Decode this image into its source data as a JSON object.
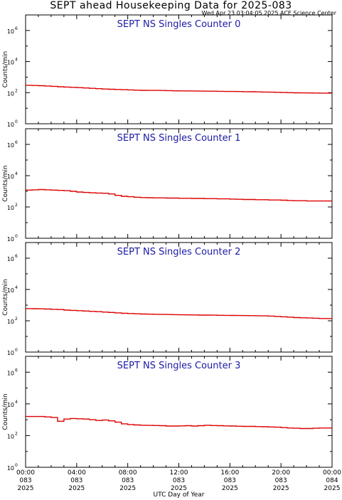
{
  "header": {
    "title": "SEPT ahead Housekeeping Data for 2025-083",
    "timestamp": "Wed Apr 23 03:04:05 2025 ACE Science Center"
  },
  "x_axis": {
    "label": "UTC Day of Year",
    "ticks": [
      {
        "time": "00:00",
        "day": "083",
        "year": "2025"
      },
      {
        "time": "04:00",
        "day": "083",
        "year": "2025"
      },
      {
        "time": "08:00",
        "day": "083",
        "year": "2025"
      },
      {
        "time": "12:00",
        "day": "083",
        "year": "2025"
      },
      {
        "time": "16:00",
        "day": "083",
        "year": "2025"
      },
      {
        "time": "20:00",
        "day": "083",
        "year": "2025"
      },
      {
        "time": "00:00",
        "day": "084",
        "year": "2025"
      }
    ]
  },
  "y_axis": {
    "label": "Counts/min",
    "tick_base": "10",
    "tick_exponents": [
      "0",
      "2",
      "4",
      "6"
    ]
  },
  "colors": {
    "series": "#dd0000",
    "panel_title": "#1a1aa6",
    "axes": "#000000"
  },
  "chart_data": [
    {
      "type": "line",
      "title": "SEPT NS Singles Counter 0",
      "xlabel": "UTC Day of Year",
      "ylabel": "Counts/min",
      "xlim": [
        0,
        24
      ],
      "ylim": [
        1,
        10000000
      ],
      "yscale": "log",
      "x": [
        0,
        0.5,
        1,
        1.5,
        2,
        2.5,
        3,
        3.5,
        4,
        4.5,
        5,
        5.5,
        6,
        6.5,
        7,
        7.5,
        8,
        8.5,
        9,
        9.5,
        10,
        10.5,
        11,
        11.5,
        12,
        12.5,
        13,
        13.5,
        14,
        14.5,
        15,
        15.5,
        16,
        16.5,
        17,
        17.5,
        18,
        18.5,
        19,
        19.5,
        20,
        20.5,
        21,
        21.5,
        22,
        22.5,
        23,
        23.5
      ],
      "values": [
        300,
        290,
        280,
        270,
        255,
        240,
        230,
        220,
        210,
        200,
        190,
        180,
        170,
        165,
        160,
        155,
        150,
        145,
        142,
        140,
        140,
        138,
        135,
        132,
        130,
        130,
        128,
        126,
        125,
        124,
        122,
        120,
        120,
        118,
        116,
        115,
        112,
        110,
        108,
        105,
        102,
        100,
        98,
        97,
        96,
        95,
        94,
        94
      ]
    },
    {
      "type": "line",
      "title": "SEPT NS Singles Counter 1",
      "xlabel": "UTC Day of Year",
      "ylabel": "Counts/min",
      "xlim": [
        0,
        24
      ],
      "ylim": [
        1,
        10000000
      ],
      "yscale": "log",
      "x": [
        0,
        0.5,
        1,
        1.5,
        2,
        2.5,
        3,
        3.5,
        4,
        4.5,
        5,
        5.5,
        6,
        6.5,
        7,
        7.5,
        8,
        8.5,
        9,
        9.5,
        10,
        10.5,
        11,
        11.5,
        12,
        12.5,
        13,
        13.5,
        14,
        14.5,
        15,
        15.5,
        16,
        16.5,
        17,
        17.5,
        18,
        18.5,
        19,
        19.5,
        20,
        20.5,
        21,
        21.5,
        22,
        22.5,
        23,
        23.5
      ],
      "values": [
        1200,
        1250,
        1300,
        1250,
        1200,
        1150,
        1100,
        1000,
        900,
        850,
        800,
        780,
        750,
        680,
        550,
        480,
        450,
        420,
        400,
        390,
        380,
        380,
        370,
        370,
        360,
        360,
        350,
        350,
        340,
        340,
        330,
        330,
        320,
        310,
        300,
        300,
        290,
        290,
        280,
        280,
        270,
        260,
        250,
        250,
        240,
        240,
        240,
        240
      ]
    },
    {
      "type": "line",
      "title": "SEPT NS Singles Counter 2",
      "xlabel": "UTC Day of Year",
      "ylabel": "Counts/min",
      "xlim": [
        0,
        24
      ],
      "ylim": [
        1,
        10000000
      ],
      "yscale": "log",
      "x": [
        0,
        0.5,
        1,
        1.5,
        2,
        2.5,
        3,
        3.5,
        4,
        4.5,
        5,
        5.5,
        6,
        6.5,
        7,
        7.5,
        8,
        8.5,
        9,
        9.5,
        10,
        10.5,
        11,
        11.5,
        12,
        12.5,
        13,
        13.5,
        14,
        14.5,
        15,
        15.5,
        16,
        16.5,
        17,
        17.5,
        18,
        18.5,
        19,
        19.5,
        20,
        20.5,
        21,
        21.5,
        22,
        22.5,
        23,
        23.5
      ],
      "values": [
        600,
        590,
        580,
        560,
        540,
        520,
        480,
        460,
        440,
        420,
        400,
        380,
        360,
        340,
        320,
        300,
        290,
        280,
        270,
        265,
        260,
        255,
        250,
        245,
        240,
        238,
        235,
        232,
        230,
        228,
        225,
        222,
        220,
        218,
        215,
        212,
        210,
        205,
        200,
        190,
        180,
        170,
        160,
        155,
        150,
        145,
        140,
        140
      ]
    },
    {
      "type": "line",
      "title": "SEPT NS Singles Counter 3",
      "xlabel": "UTC Day of Year",
      "ylabel": "Counts/min",
      "xlim": [
        0,
        24
      ],
      "ylim": [
        1,
        10000000
      ],
      "yscale": "log",
      "x": [
        0,
        0.5,
        1,
        1.5,
        2,
        2.5,
        3,
        3.5,
        4,
        4.5,
        5,
        5.5,
        6,
        6.5,
        7,
        7.5,
        8,
        8.5,
        9,
        9.5,
        10,
        10.5,
        11,
        11.5,
        12,
        12.5,
        13,
        13.5,
        14,
        14.5,
        15,
        15.5,
        16,
        16.5,
        17,
        17.5,
        18,
        18.5,
        19,
        19.5,
        20,
        20.5,
        21,
        21.5,
        22,
        22.5,
        23,
        23.5
      ],
      "values": [
        1600,
        1600,
        1600,
        1500,
        1400,
        800,
        1100,
        1200,
        1150,
        1100,
        1000,
        900,
        950,
        850,
        700,
        550,
        500,
        470,
        450,
        440,
        430,
        420,
        400,
        400,
        410,
        420,
        400,
        420,
        450,
        430,
        420,
        410,
        400,
        390,
        380,
        380,
        370,
        360,
        350,
        340,
        320,
        300,
        290,
        280,
        280,
        290,
        300,
        300
      ]
    }
  ]
}
